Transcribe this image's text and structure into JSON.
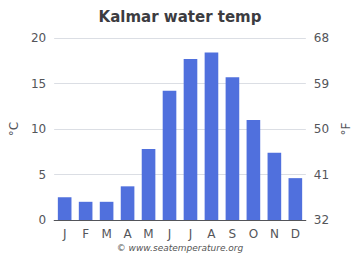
{
  "chart_data": {
    "type": "bar",
    "title": "Kalmar water temp",
    "categories": [
      "J",
      "F",
      "M",
      "A",
      "M",
      "J",
      "J",
      "A",
      "S",
      "O",
      "N",
      "D"
    ],
    "values": [
      2.5,
      2.0,
      2.0,
      3.7,
      7.8,
      14.2,
      17.7,
      18.4,
      15.7,
      11.0,
      7.4,
      4.6
    ],
    "ylabel": "°C",
    "y2label": "°F",
    "ylim": [
      0,
      20
    ],
    "yticks": [
      0,
      5,
      10,
      15,
      20
    ],
    "y2lim": [
      32,
      68
    ],
    "y2ticks": [
      32,
      41,
      50,
      59,
      68
    ],
    "grid": true,
    "annotation": "© www.seatemperature.org"
  }
}
